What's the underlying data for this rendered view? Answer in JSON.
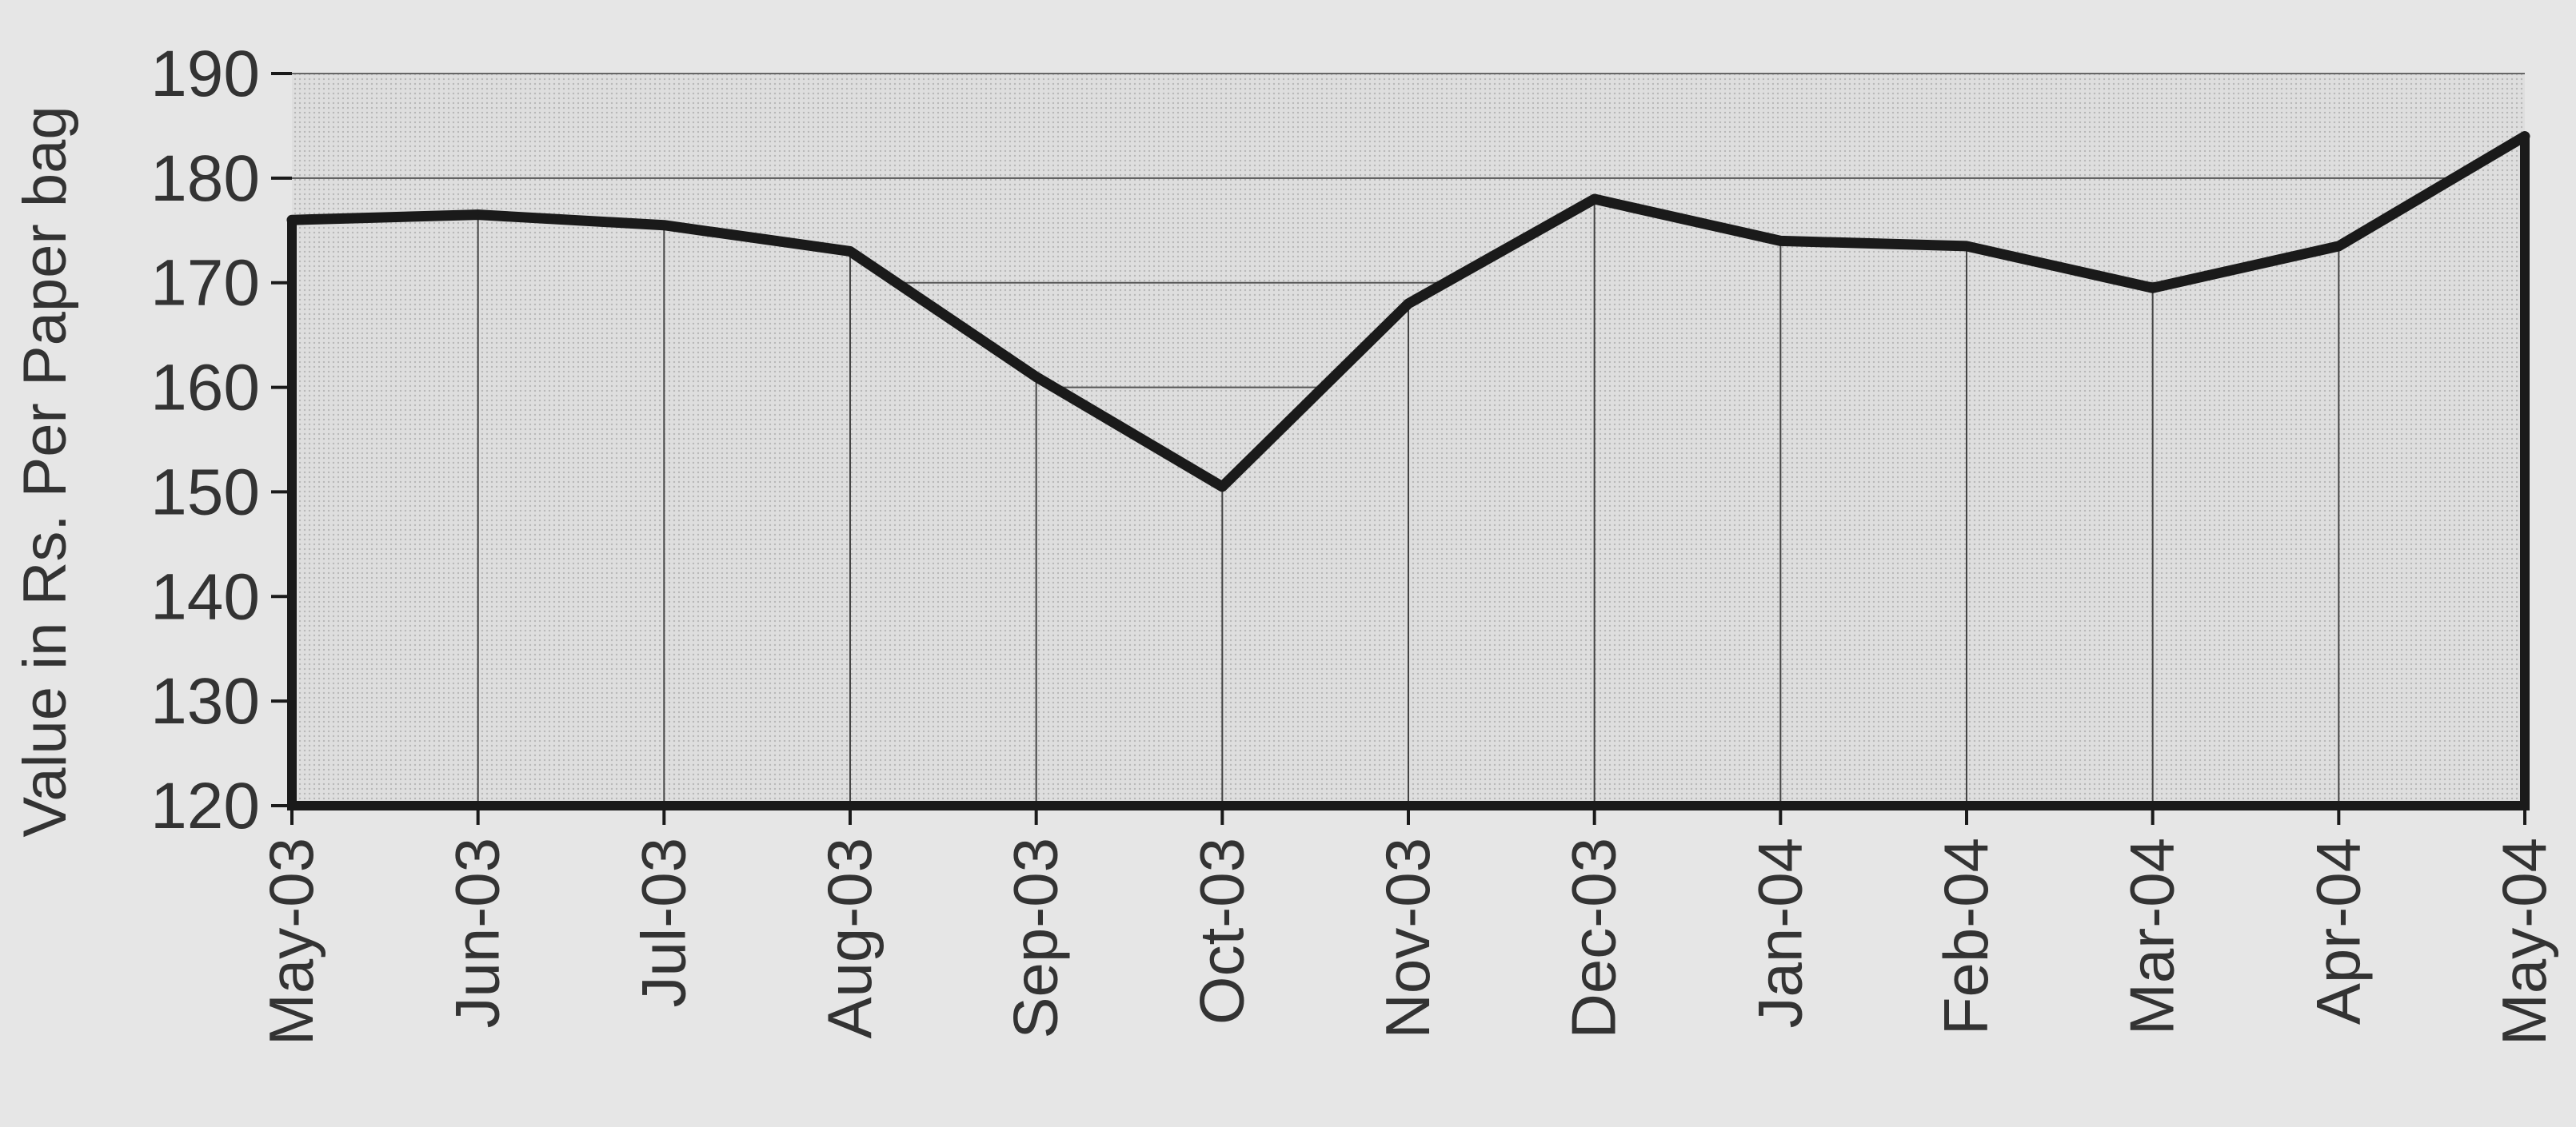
{
  "chart_data": {
    "type": "area",
    "title": "",
    "xlabel": "",
    "ylabel": "Value in Rs. Per Paper bag",
    "categories": [
      "May-03",
      "Jun-03",
      "Jul-03",
      "Aug-03",
      "Sep-03",
      "Oct-03",
      "Nov-03",
      "Dec-03",
      "Jan-04",
      "Feb-04",
      "Mar-04",
      "Apr-04",
      "May-04"
    ],
    "series": [
      {
        "values": [
          176,
          176.5,
          175.5,
          173,
          161,
          150.5,
          168,
          178,
          174,
          173.5,
          169.5,
          173.5,
          184
        ]
      }
    ],
    "ylim": [
      120,
      190
    ],
    "yticks": [
      "120",
      "130",
      "140",
      "150",
      "160",
      "170",
      "180",
      "190"
    ],
    "grid": true,
    "legend": "none",
    "colors": {
      "background": "#e6e6e6",
      "fill": "#dcdcdc",
      "line": "#1a1a1a",
      "grid": "#555555",
      "text": "#333333"
    }
  }
}
